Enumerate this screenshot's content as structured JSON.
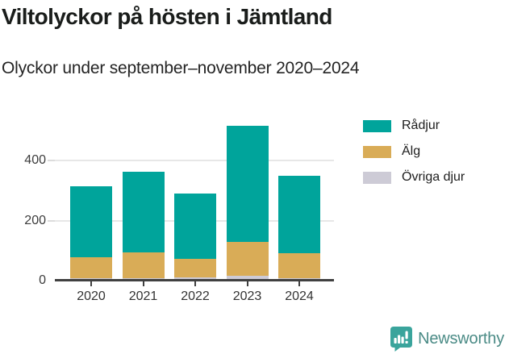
{
  "header": {
    "title": "Viltolyckor på hösten i Jämtland",
    "subtitle": "Olyckor under september–november 2020–2024"
  },
  "chart_data": {
    "type": "bar",
    "stacked": true,
    "title": "Viltolyckor på hösten i Jämtland",
    "subtitle": "Olyckor under september–november 2020–2024",
    "categories": [
      "2020",
      "2021",
      "2022",
      "2023",
      "2024"
    ],
    "series": [
      {
        "name": "Rådjur",
        "color": "#00a49b",
        "values": [
          238,
          269,
          220,
          389,
          257
        ]
      },
      {
        "name": "Älg",
        "color": "#d9ac57",
        "values": [
          68,
          86,
          61,
          112,
          83
        ]
      },
      {
        "name": "Övriga djur",
        "color": "#cdcbd6",
        "values": [
          9,
          8,
          11,
          17,
          9
        ]
      }
    ],
    "stack_order_bottom_to_top": [
      "Övriga djur",
      "Älg",
      "Rådjur"
    ],
    "totals": [
      315,
      363,
      292,
      518,
      349
    ],
    "xlabel": "",
    "ylabel": "",
    "y_ticks": [
      0,
      200,
      400
    ],
    "ylim": [
      0,
      560
    ],
    "grid": "horizontal",
    "legend_position": "top-right"
  },
  "branding": {
    "name": "Newsworthy",
    "text_color": "#4b8b86",
    "icon": "newsworthy-chart-bubble-icon",
    "icon_color": "#3aa49c"
  }
}
